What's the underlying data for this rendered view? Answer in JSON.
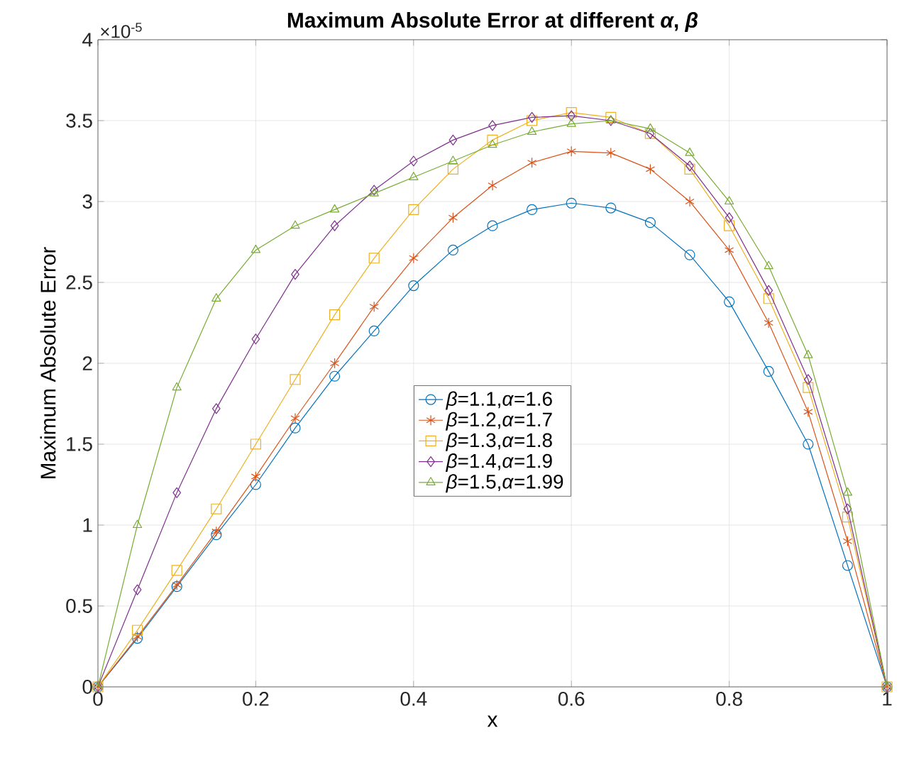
{
  "chart_data": {
    "type": "line",
    "title": "Maximum Absolute Error at different *α*, *β*",
    "xlabel": "x",
    "ylabel": "Maximum Absolute Error",
    "annotations": [
      "×10$^{-5}$"
    ],
    "x": [
      0,
      0.05,
      0.1,
      0.15,
      0.2,
      0.25,
      0.3,
      0.35,
      0.4,
      0.45,
      0.5,
      0.55,
      0.6,
      0.65,
      0.7,
      0.75,
      0.8,
      0.85,
      0.9,
      0.95,
      1
    ],
    "series": [
      {
        "name": "*β*=1.1,*α*=1.6",
        "color": "#0072bd",
        "marker": "circle",
        "values": [
          0,
          0.3,
          0.62,
          0.94,
          1.25,
          1.6,
          1.92,
          2.2,
          2.48,
          2.7,
          2.85,
          2.95,
          2.99,
          2.96,
          2.87,
          2.67,
          2.38,
          1.95,
          1.5,
          0.75,
          0
        ]
      },
      {
        "name": "*β*=1.2,*α*=1.7",
        "color": "#d95319",
        "marker": "cross",
        "values": [
          0,
          0.31,
          0.63,
          0.96,
          1.3,
          1.66,
          2.0,
          2.35,
          2.65,
          2.9,
          3.1,
          3.24,
          3.31,
          3.3,
          3.2,
          3.0,
          2.7,
          2.25,
          1.7,
          0.9,
          0
        ]
      },
      {
        "name": "*β*=1.3,*α*=1.8",
        "color": "#edb120",
        "marker": "square",
        "values": [
          0,
          0.35,
          0.72,
          1.1,
          1.5,
          1.9,
          2.3,
          2.65,
          2.95,
          3.2,
          3.38,
          3.5,
          3.55,
          3.52,
          3.42,
          3.2,
          2.85,
          2.4,
          1.85,
          1.05,
          0
        ]
      },
      {
        "name": "*β*=1.4,*α*=1.9",
        "color": "#7e2f8e",
        "marker": "diamond",
        "values": [
          0,
          0.6,
          1.2,
          1.72,
          2.15,
          2.55,
          2.85,
          3.07,
          3.25,
          3.38,
          3.47,
          3.52,
          3.53,
          3.5,
          3.42,
          3.22,
          2.9,
          2.45,
          1.9,
          1.1,
          0
        ]
      },
      {
        "name": "*β*=1.5,*α*=1.99",
        "color": "#77ac30",
        "marker": "triangle",
        "values": [
          0,
          1.0,
          1.85,
          2.4,
          2.7,
          2.85,
          2.95,
          3.05,
          3.15,
          3.25,
          3.35,
          3.43,
          3.48,
          3.5,
          3.45,
          3.3,
          3.0,
          2.6,
          2.05,
          1.2,
          0
        ]
      }
    ],
    "xlim": [
      0,
      1
    ],
    "xticks": [
      0,
      0.2,
      0.4,
      0.6,
      0.8,
      1
    ],
    "ylim": [
      0,
      4
    ],
    "yticks": [
      0,
      0.5,
      1,
      1.5,
      2,
      2.5,
      3,
      3.5,
      4
    ],
    "grid": true,
    "legend": "center",
    "line_style": "solid"
  }
}
